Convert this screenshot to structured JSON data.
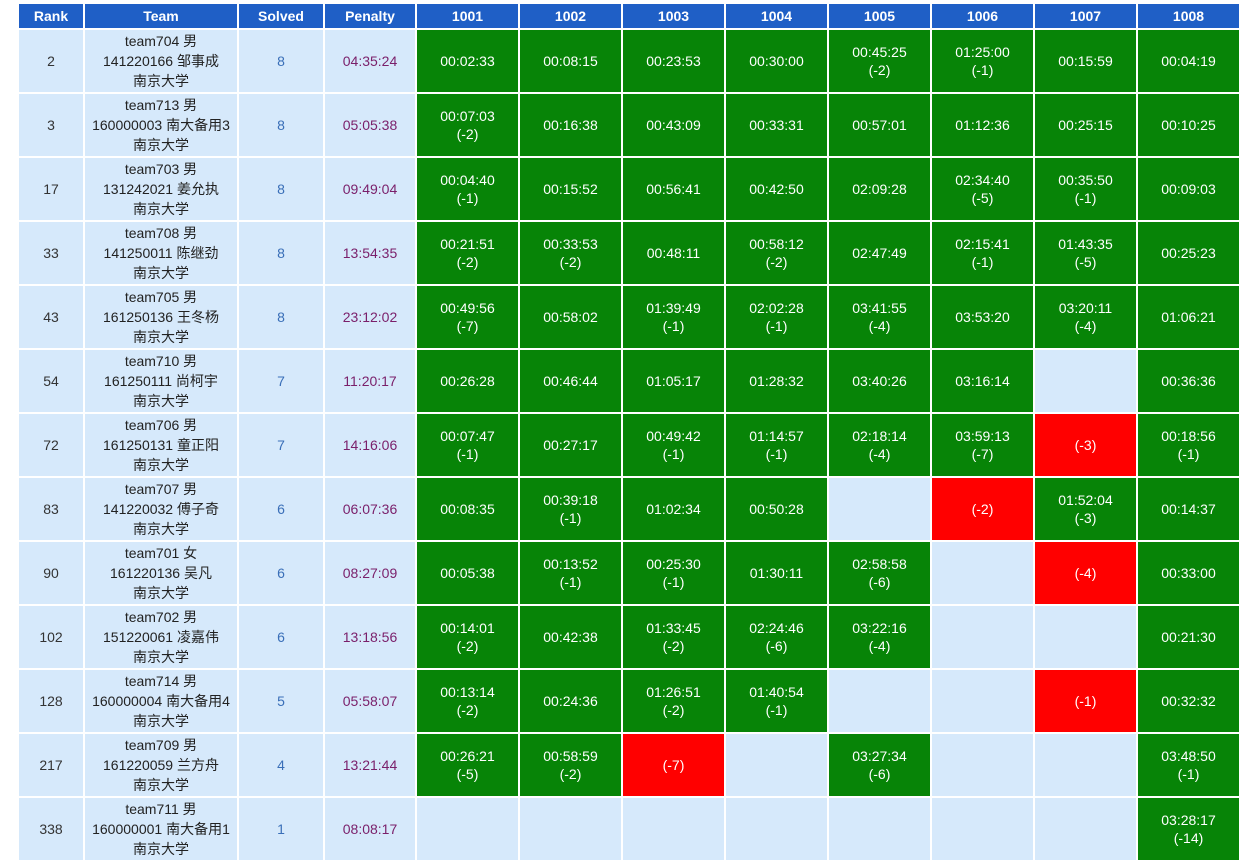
{
  "headers": [
    "Rank",
    "Team",
    "Solved",
    "Penalty",
    "1001",
    "1002",
    "1003",
    "1004",
    "1005",
    "1006",
    "1007",
    "1008"
  ],
  "rows": [
    {
      "rank": "2",
      "team": [
        "team704 男",
        "141220166 邹事成",
        "南京大学"
      ],
      "solved": "8",
      "penalty": "04:35:24",
      "problems": [
        {
          "status": "ac",
          "time": "00:02:33",
          "tries": ""
        },
        {
          "status": "ac",
          "time": "00:08:15",
          "tries": ""
        },
        {
          "status": "ac",
          "time": "00:23:53",
          "tries": ""
        },
        {
          "status": "ac",
          "time": "00:30:00",
          "tries": ""
        },
        {
          "status": "ac",
          "time": "00:45:25",
          "tries": "(-2)"
        },
        {
          "status": "ac",
          "time": "01:25:00",
          "tries": "(-1)"
        },
        {
          "status": "ac",
          "time": "00:15:59",
          "tries": ""
        },
        {
          "status": "ac",
          "time": "00:04:19",
          "tries": ""
        }
      ]
    },
    {
      "rank": "3",
      "team": [
        "team713 男",
        "160000003 南大备用3",
        "南京大学"
      ],
      "solved": "8",
      "penalty": "05:05:38",
      "problems": [
        {
          "status": "ac",
          "time": "00:07:03",
          "tries": "(-2)"
        },
        {
          "status": "ac",
          "time": "00:16:38",
          "tries": ""
        },
        {
          "status": "ac",
          "time": "00:43:09",
          "tries": ""
        },
        {
          "status": "ac",
          "time": "00:33:31",
          "tries": ""
        },
        {
          "status": "ac",
          "time": "00:57:01",
          "tries": ""
        },
        {
          "status": "ac",
          "time": "01:12:36",
          "tries": ""
        },
        {
          "status": "ac",
          "time": "00:25:15",
          "tries": ""
        },
        {
          "status": "ac",
          "time": "00:10:25",
          "tries": ""
        }
      ]
    },
    {
      "rank": "17",
      "team": [
        "team703 男",
        "131242021 姜允执",
        "南京大学"
      ],
      "solved": "8",
      "penalty": "09:49:04",
      "problems": [
        {
          "status": "ac",
          "time": "00:04:40",
          "tries": "(-1)"
        },
        {
          "status": "ac",
          "time": "00:15:52",
          "tries": ""
        },
        {
          "status": "ac",
          "time": "00:56:41",
          "tries": ""
        },
        {
          "status": "ac",
          "time": "00:42:50",
          "tries": ""
        },
        {
          "status": "ac",
          "time": "02:09:28",
          "tries": ""
        },
        {
          "status": "ac",
          "time": "02:34:40",
          "tries": "(-5)"
        },
        {
          "status": "ac",
          "time": "00:35:50",
          "tries": "(-1)"
        },
        {
          "status": "ac",
          "time": "00:09:03",
          "tries": ""
        }
      ]
    },
    {
      "rank": "33",
      "team": [
        "team708 男",
        "141250011 陈继劲",
        "南京大学"
      ],
      "solved": "8",
      "penalty": "13:54:35",
      "problems": [
        {
          "status": "ac",
          "time": "00:21:51",
          "tries": "(-2)"
        },
        {
          "status": "ac",
          "time": "00:33:53",
          "tries": "(-2)"
        },
        {
          "status": "ac",
          "time": "00:48:11",
          "tries": ""
        },
        {
          "status": "ac",
          "time": "00:58:12",
          "tries": "(-2)"
        },
        {
          "status": "ac",
          "time": "02:47:49",
          "tries": ""
        },
        {
          "status": "ac",
          "time": "02:15:41",
          "tries": "(-1)"
        },
        {
          "status": "ac",
          "time": "01:43:35",
          "tries": "(-5)"
        },
        {
          "status": "ac",
          "time": "00:25:23",
          "tries": ""
        }
      ]
    },
    {
      "rank": "43",
      "team": [
        "team705 男",
        "161250136 王冬杨",
        "南京大学"
      ],
      "solved": "8",
      "penalty": "23:12:02",
      "problems": [
        {
          "status": "ac",
          "time": "00:49:56",
          "tries": "(-7)"
        },
        {
          "status": "ac",
          "time": "00:58:02",
          "tries": ""
        },
        {
          "status": "ac",
          "time": "01:39:49",
          "tries": "(-1)"
        },
        {
          "status": "ac",
          "time": "02:02:28",
          "tries": "(-1)"
        },
        {
          "status": "ac",
          "time": "03:41:55",
          "tries": "(-4)"
        },
        {
          "status": "ac",
          "time": "03:53:20",
          "tries": ""
        },
        {
          "status": "ac",
          "time": "03:20:11",
          "tries": "(-4)"
        },
        {
          "status": "ac",
          "time": "01:06:21",
          "tries": ""
        }
      ]
    },
    {
      "rank": "54",
      "team": [
        "team710 男",
        "161250111 尚柯宇",
        "南京大学"
      ],
      "solved": "7",
      "penalty": "11:20:17",
      "problems": [
        {
          "status": "ac",
          "time": "00:26:28",
          "tries": ""
        },
        {
          "status": "ac",
          "time": "00:46:44",
          "tries": ""
        },
        {
          "status": "ac",
          "time": "01:05:17",
          "tries": ""
        },
        {
          "status": "ac",
          "time": "01:28:32",
          "tries": ""
        },
        {
          "status": "ac",
          "time": "03:40:26",
          "tries": ""
        },
        {
          "status": "ac",
          "time": "03:16:14",
          "tries": ""
        },
        {
          "status": "empty",
          "time": "",
          "tries": ""
        },
        {
          "status": "ac",
          "time": "00:36:36",
          "tries": ""
        }
      ]
    },
    {
      "rank": "72",
      "team": [
        "team706 男",
        "161250131 童正阳",
        "南京大学"
      ],
      "solved": "7",
      "penalty": "14:16:06",
      "problems": [
        {
          "status": "ac",
          "time": "00:07:47",
          "tries": "(-1)"
        },
        {
          "status": "ac",
          "time": "00:27:17",
          "tries": ""
        },
        {
          "status": "ac",
          "time": "00:49:42",
          "tries": "(-1)"
        },
        {
          "status": "ac",
          "time": "01:14:57",
          "tries": "(-1)"
        },
        {
          "status": "ac",
          "time": "02:18:14",
          "tries": "(-4)"
        },
        {
          "status": "ac",
          "time": "03:59:13",
          "tries": "(-7)"
        },
        {
          "status": "wa",
          "time": "",
          "tries": "(-3)"
        },
        {
          "status": "ac",
          "time": "00:18:56",
          "tries": "(-1)"
        }
      ]
    },
    {
      "rank": "83",
      "team": [
        "team707 男",
        "141220032 傅子奇",
        "南京大学"
      ],
      "solved": "6",
      "penalty": "06:07:36",
      "problems": [
        {
          "status": "ac",
          "time": "00:08:35",
          "tries": ""
        },
        {
          "status": "ac",
          "time": "00:39:18",
          "tries": "(-1)"
        },
        {
          "status": "ac",
          "time": "01:02:34",
          "tries": ""
        },
        {
          "status": "ac",
          "time": "00:50:28",
          "tries": ""
        },
        {
          "status": "empty",
          "time": "",
          "tries": ""
        },
        {
          "status": "wa",
          "time": "",
          "tries": "(-2)"
        },
        {
          "status": "ac",
          "time": "01:52:04",
          "tries": "(-3)"
        },
        {
          "status": "ac",
          "time": "00:14:37",
          "tries": ""
        }
      ]
    },
    {
      "rank": "90",
      "team": [
        "team701 女",
        "161220136 吴凡",
        "南京大学"
      ],
      "solved": "6",
      "penalty": "08:27:09",
      "problems": [
        {
          "status": "ac",
          "time": "00:05:38",
          "tries": ""
        },
        {
          "status": "ac",
          "time": "00:13:52",
          "tries": "(-1)"
        },
        {
          "status": "ac",
          "time": "00:25:30",
          "tries": "(-1)"
        },
        {
          "status": "ac",
          "time": "01:30:11",
          "tries": ""
        },
        {
          "status": "ac",
          "time": "02:58:58",
          "tries": "(-6)"
        },
        {
          "status": "empty",
          "time": "",
          "tries": ""
        },
        {
          "status": "wa",
          "time": "",
          "tries": "(-4)"
        },
        {
          "status": "ac",
          "time": "00:33:00",
          "tries": ""
        }
      ]
    },
    {
      "rank": "102",
      "team": [
        "team702 男",
        "151220061 凌嘉伟",
        "南京大学"
      ],
      "solved": "6",
      "penalty": "13:18:56",
      "problems": [
        {
          "status": "ac",
          "time": "00:14:01",
          "tries": "(-2)"
        },
        {
          "status": "ac",
          "time": "00:42:38",
          "tries": ""
        },
        {
          "status": "ac",
          "time": "01:33:45",
          "tries": "(-2)"
        },
        {
          "status": "ac",
          "time": "02:24:46",
          "tries": "(-6)"
        },
        {
          "status": "ac",
          "time": "03:22:16",
          "tries": "(-4)"
        },
        {
          "status": "empty",
          "time": "",
          "tries": ""
        },
        {
          "status": "empty",
          "time": "",
          "tries": ""
        },
        {
          "status": "ac",
          "time": "00:21:30",
          "tries": ""
        }
      ]
    },
    {
      "rank": "128",
      "team": [
        "team714 男",
        "160000004 南大备用4",
        "南京大学"
      ],
      "solved": "5",
      "penalty": "05:58:07",
      "problems": [
        {
          "status": "ac",
          "time": "00:13:14",
          "tries": "(-2)"
        },
        {
          "status": "ac",
          "time": "00:24:36",
          "tries": ""
        },
        {
          "status": "ac",
          "time": "01:26:51",
          "tries": "(-2)"
        },
        {
          "status": "ac",
          "time": "01:40:54",
          "tries": "(-1)"
        },
        {
          "status": "empty",
          "time": "",
          "tries": ""
        },
        {
          "status": "empty",
          "time": "",
          "tries": ""
        },
        {
          "status": "wa",
          "time": "",
          "tries": "(-1)"
        },
        {
          "status": "ac",
          "time": "00:32:32",
          "tries": ""
        }
      ]
    },
    {
      "rank": "217",
      "team": [
        "team709 男",
        "161220059 兰方舟",
        "南京大学"
      ],
      "solved": "4",
      "penalty": "13:21:44",
      "problems": [
        {
          "status": "ac",
          "time": "00:26:21",
          "tries": "(-5)"
        },
        {
          "status": "ac",
          "time": "00:58:59",
          "tries": "(-2)"
        },
        {
          "status": "wa",
          "time": "",
          "tries": "(-7)"
        },
        {
          "status": "empty",
          "time": "",
          "tries": ""
        },
        {
          "status": "ac",
          "time": "03:27:34",
          "tries": "(-6)"
        },
        {
          "status": "empty",
          "time": "",
          "tries": ""
        },
        {
          "status": "empty",
          "time": "",
          "tries": ""
        },
        {
          "status": "ac",
          "time": "03:48:50",
          "tries": "(-1)"
        }
      ]
    },
    {
      "rank": "338",
      "team": [
        "team711 男",
        "160000001 南大备用1",
        "南京大学"
      ],
      "solved": "1",
      "penalty": "08:08:17",
      "problems": [
        {
          "status": "empty",
          "time": "",
          "tries": ""
        },
        {
          "status": "empty",
          "time": "",
          "tries": ""
        },
        {
          "status": "empty",
          "time": "",
          "tries": ""
        },
        {
          "status": "empty",
          "time": "",
          "tries": ""
        },
        {
          "status": "empty",
          "time": "",
          "tries": ""
        },
        {
          "status": "empty",
          "time": "",
          "tries": ""
        },
        {
          "status": "empty",
          "time": "",
          "tries": ""
        },
        {
          "status": "ac",
          "time": "03:28:17",
          "tries": "(-14)"
        }
      ]
    }
  ],
  "colors": {
    "header": "#1f5fc6",
    "accepted": "#078407",
    "rejected": "#ff0000",
    "empty": "#d6e9fb"
  }
}
